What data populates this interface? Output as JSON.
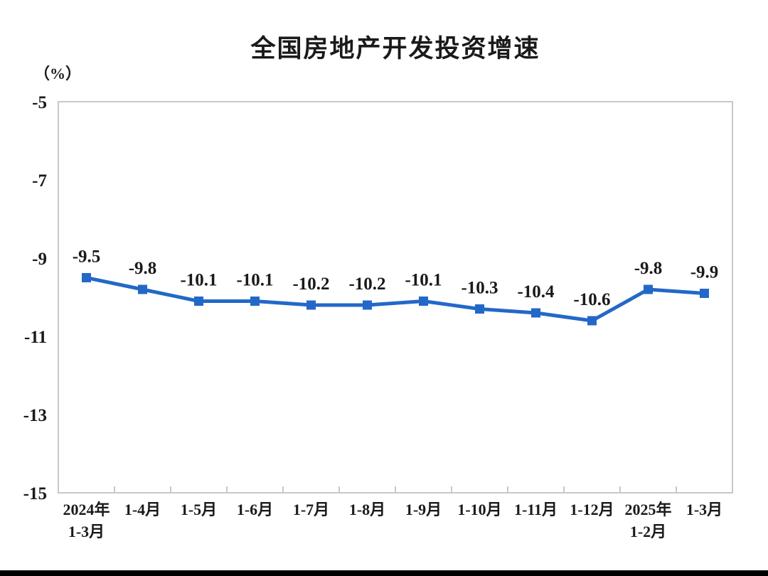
{
  "chart_data": {
    "type": "line",
    "title": "全国房地产开发投资增速",
    "unit_label": "（%）",
    "categories": [
      "2024年\n1-3月",
      "1-4月",
      "1-5月",
      "1-6月",
      "1-7月",
      "1-8月",
      "1-9月",
      "1-10月",
      "1-11月",
      "1-12月",
      "2025年\n1-2月",
      "1-3月"
    ],
    "values": [
      -9.5,
      -9.8,
      -10.1,
      -10.1,
      -10.2,
      -10.2,
      -10.1,
      -10.3,
      -10.4,
      -10.6,
      -9.8,
      -9.9
    ],
    "data_labels": [
      "-9.5",
      "-9.8",
      "-10.1",
      "-10.1",
      "-10.2",
      "-10.2",
      "-10.1",
      "-10.3",
      "-10.4",
      "-10.6",
      "-9.8",
      "-9.9"
    ],
    "ylim": [
      -15,
      -5
    ],
    "yticks": [
      -5,
      -7,
      -9,
      -11,
      -13,
      -15
    ],
    "grid": false,
    "legend": "none",
    "line_color": "#2368C8",
    "marker": "square",
    "axis_color": "#c8c8c8",
    "text_color": "#1a1a1a"
  }
}
